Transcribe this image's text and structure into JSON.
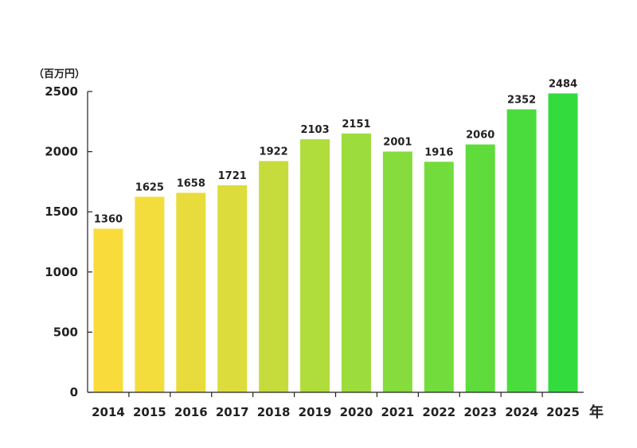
{
  "chart_data": {
    "type": "bar",
    "ylabel": "（百万円）",
    "xlabel": "年",
    "ylim": [
      0,
      2500
    ],
    "yticks": [
      "0",
      "500",
      "1000",
      "1500",
      "2000",
      "2500"
    ],
    "grid": false,
    "categories": [
      "2014",
      "2015",
      "2016",
      "2017",
      "2018",
      "2019",
      "2020",
      "2021",
      "2022",
      "2023",
      "2024",
      "2025"
    ],
    "values": [
      1360,
      1625,
      1658,
      1721,
      1922,
      2103,
      2151,
      2001,
      1916,
      2060,
      2352,
      2484
    ],
    "value_labels": [
      "1360",
      "1625",
      "1658",
      "1721",
      "1922",
      "2103",
      "2151",
      "2001",
      "1916",
      "2060",
      "2352",
      "2484"
    ],
    "colors": [
      "#f9dc3c",
      "#f3dd3c",
      "#e8dc3c",
      "#dcdc3c",
      "#c5dc3c",
      "#b0dc3c",
      "#9cdc3c",
      "#86dc3c",
      "#72dc3c",
      "#5fdc3c",
      "#4adc3c",
      "#33dc3c"
    ]
  }
}
